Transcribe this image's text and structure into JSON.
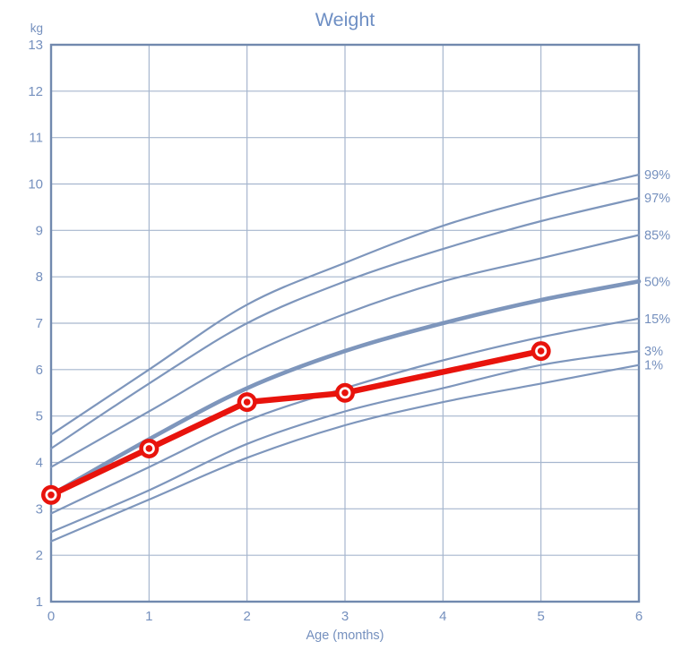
{
  "chart_data": {
    "type": "line",
    "title": "Weight",
    "y_unit": "kg",
    "xlabel": "Age (months)",
    "xlim": [
      0,
      6
    ],
    "ylim": [
      1,
      13
    ],
    "x_ticks": [
      0,
      1,
      2,
      3,
      4,
      5,
      6
    ],
    "y_ticks": [
      1,
      2,
      3,
      4,
      5,
      6,
      7,
      8,
      9,
      10,
      11,
      12,
      13
    ],
    "grid": true,
    "legend_position": "curve-end-labels-right",
    "months": [
      0,
      1,
      2,
      3,
      4,
      5,
      6
    ],
    "percentile_curves": [
      {
        "label": "99%",
        "emphasis": false,
        "values": [
          4.6,
          6.0,
          7.4,
          8.3,
          9.1,
          9.7,
          10.2
        ]
      },
      {
        "label": "97%",
        "emphasis": false,
        "values": [
          4.3,
          5.7,
          7.0,
          7.9,
          8.6,
          9.2,
          9.7
        ]
      },
      {
        "label": "85%",
        "emphasis": false,
        "values": [
          3.9,
          5.1,
          6.3,
          7.2,
          7.9,
          8.4,
          8.9
        ]
      },
      {
        "label": "50%",
        "emphasis": true,
        "values": [
          3.3,
          4.5,
          5.6,
          6.4,
          7.0,
          7.5,
          7.9
        ]
      },
      {
        "label": "15%",
        "emphasis": false,
        "values": [
          2.9,
          3.9,
          4.9,
          5.6,
          6.2,
          6.7,
          7.1
        ]
      },
      {
        "label": "3%",
        "emphasis": false,
        "values": [
          2.5,
          3.4,
          4.4,
          5.1,
          5.6,
          6.1,
          6.4
        ]
      },
      {
        "label": "1%",
        "emphasis": false,
        "values": [
          2.3,
          3.2,
          4.1,
          4.8,
          5.3,
          5.7,
          6.1
        ]
      }
    ],
    "patient_series": {
      "name": "measured-weight",
      "points": [
        [
          0,
          3.3
        ],
        [
          1,
          4.3
        ],
        [
          2,
          5.3
        ],
        [
          3,
          5.5
        ],
        [
          5,
          6.4
        ]
      ]
    }
  },
  "colors": {
    "curve": "#7E96BC",
    "curve_emphasis": "#7E96BC",
    "grid": "#A6B6CE",
    "border": "#7189AE",
    "axis_text": "#7590BE",
    "title_text": "#6E8FC4",
    "series": "#E8130C",
    "marker_inner": "#FFFFFF",
    "background": "#FFFFFF"
  }
}
